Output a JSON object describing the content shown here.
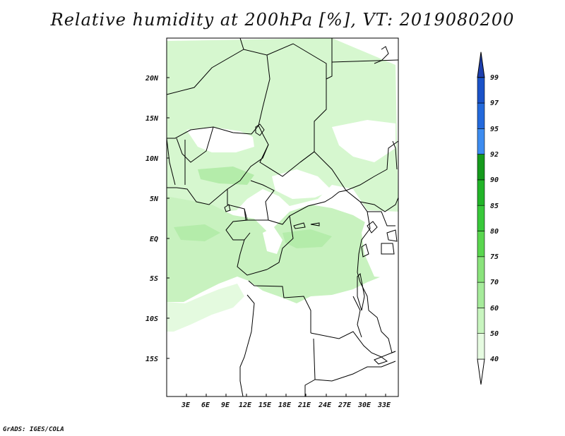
{
  "title": "Relative humidity at 200hPa [%], VT: 2019080200",
  "credit": "GrADS: IGES/COLA",
  "map": {
    "lat_ticks": [
      "20N",
      "15N",
      "10N",
      "5N",
      "EQ",
      "5S",
      "10S",
      "15S"
    ],
    "lon_ticks": [
      "3E",
      "6E",
      "9E",
      "12E",
      "15E",
      "18E",
      "21E",
      "24E",
      "27E",
      "30E",
      "33E"
    ]
  },
  "colorbar": {
    "levels": [
      "40",
      "50",
      "60",
      "70",
      "75",
      "80",
      "85",
      "90",
      "92",
      "95",
      "97",
      "99"
    ],
    "colors": [
      "#ffffff",
      "#e6fbe1",
      "#c8f5bf",
      "#a6eb9b",
      "#8ae37c",
      "#5ad64f",
      "#38c83a",
      "#22b428",
      "#159a1c",
      "#3d8cf0",
      "#2369dc",
      "#1a52c8",
      "#1e3fae"
    ]
  }
}
